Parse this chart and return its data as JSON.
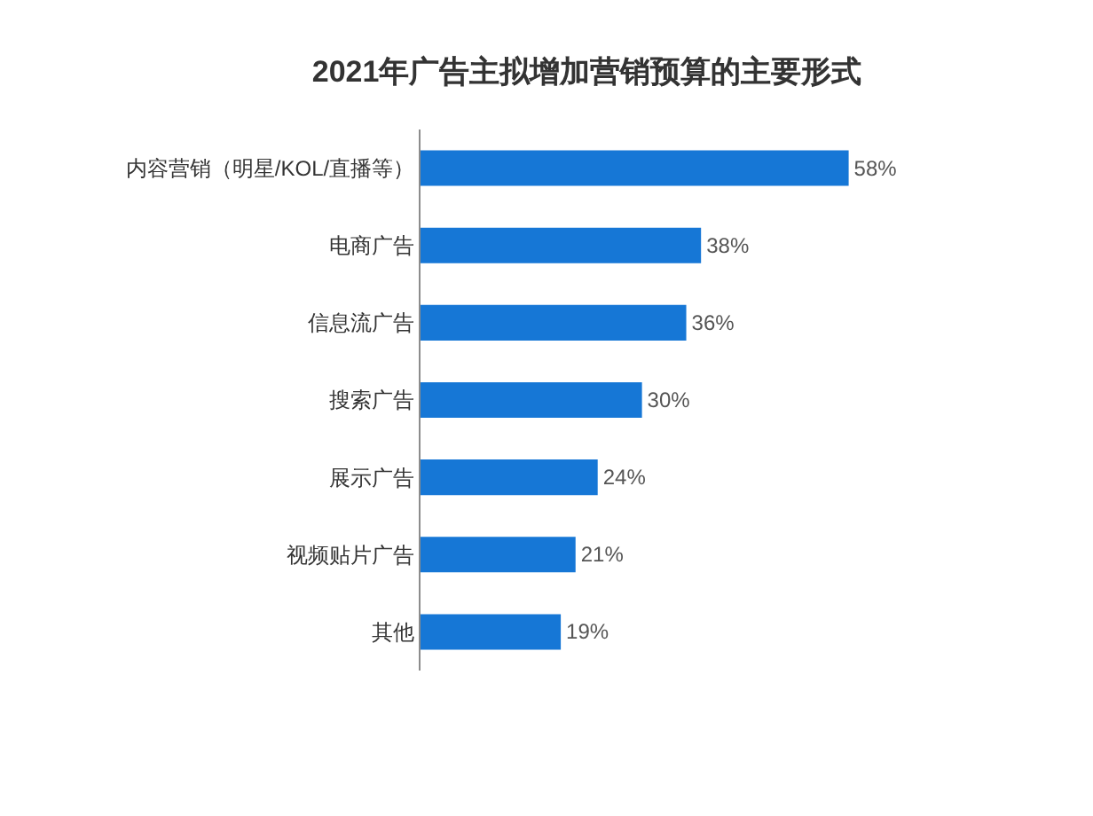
{
  "chart_data": {
    "type": "bar",
    "orientation": "horizontal",
    "title": "2021年广告主拟增加营销预算的主要形式",
    "categories": [
      "内容营销（明星/KOL/直播等）",
      "电商广告",
      "信息流广告",
      "搜索广告",
      "展示广告",
      "视频贴片广告",
      "其他"
    ],
    "values": [
      58,
      38,
      36,
      30,
      24,
      21,
      19
    ],
    "value_labels": [
      "58%",
      "38%",
      "36%",
      "30%",
      "24%",
      "21%",
      "19%"
    ],
    "color": "#1677d6",
    "tick_labels": "y"
  }
}
